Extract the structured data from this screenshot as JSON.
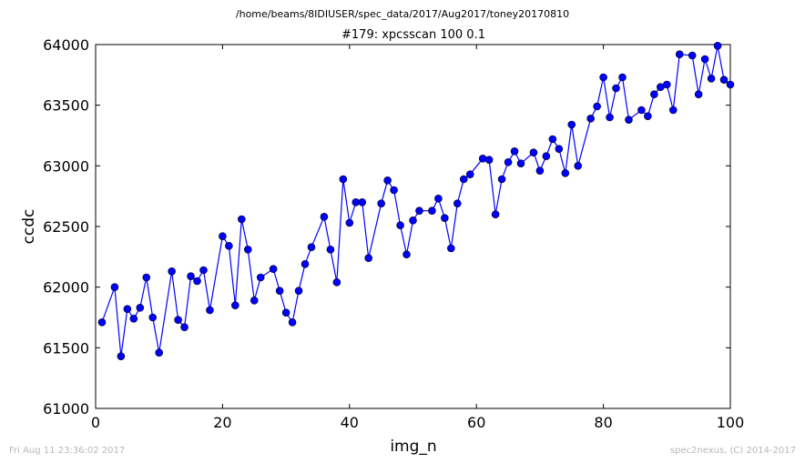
{
  "chart_data": {
    "type": "line",
    "suptitle": "/home/beams/8IDIUSER/spec_data/2017/Aug2017/toney20170810",
    "title": "#179: xpcsscan 100 0.1",
    "xlabel": "img_n",
    "ylabel": "ccdc",
    "xlim": [
      0,
      100
    ],
    "ylim": [
      61000,
      64000
    ],
    "xticks": [
      0,
      20,
      40,
      60,
      80,
      100
    ],
    "yticks": [
      61000,
      61500,
      62000,
      62500,
      63000,
      63500,
      64000
    ],
    "grid": false,
    "legend": "none",
    "series": [
      {
        "color": "#0000ff",
        "marker": "circle",
        "x": [
          1,
          3,
          4,
          5,
          6,
          7,
          8,
          9,
          10,
          12,
          13,
          14,
          15,
          16,
          17,
          18,
          20,
          21,
          22,
          23,
          24,
          25,
          26,
          28,
          29,
          30,
          31,
          32,
          33,
          34,
          36,
          37,
          38,
          39,
          40,
          41,
          42,
          43,
          45,
          46,
          47,
          48,
          49,
          50,
          51,
          53,
          54,
          55,
          56,
          57,
          58,
          59,
          61,
          62,
          63,
          64,
          65,
          66,
          67,
          69,
          70,
          71,
          72,
          73,
          74,
          75,
          76,
          78,
          79,
          80,
          81,
          82,
          83,
          84,
          86,
          87,
          88,
          89,
          90,
          91,
          92,
          94,
          95,
          96,
          97,
          98,
          99,
          100
        ],
        "y": [
          61710,
          62000,
          61430,
          61820,
          61740,
          61830,
          62080,
          61750,
          61460,
          62130,
          61730,
          61670,
          62090,
          62050,
          62140,
          61810,
          62420,
          62340,
          61850,
          62560,
          62310,
          61890,
          62080,
          62150,
          61970,
          61790,
          61710,
          61970,
          62190,
          62330,
          62580,
          62310,
          62040,
          62890,
          62530,
          62700,
          62700,
          62240,
          62690,
          62880,
          62800,
          62510,
          62270,
          62550,
          62630,
          62630,
          62730,
          62570,
          62320,
          62690,
          62890,
          62930,
          63060,
          63050,
          62600,
          62890,
          63030,
          63120,
          63020,
          63110,
          62960,
          63080,
          63220,
          63140,
          62940,
          63340,
          63000,
          63390,
          63490,
          63730,
          63400,
          63640,
          63730,
          63380,
          63460,
          63410,
          63590,
          63650,
          63670,
          63460,
          63920,
          63910,
          63590,
          63880,
          63720,
          63990,
          63710,
          63670
        ]
      }
    ]
  },
  "footer": {
    "left": "Fri Aug 11 23:36:02 2017",
    "right": "spec2nexus, (C) 2014-2017"
  }
}
